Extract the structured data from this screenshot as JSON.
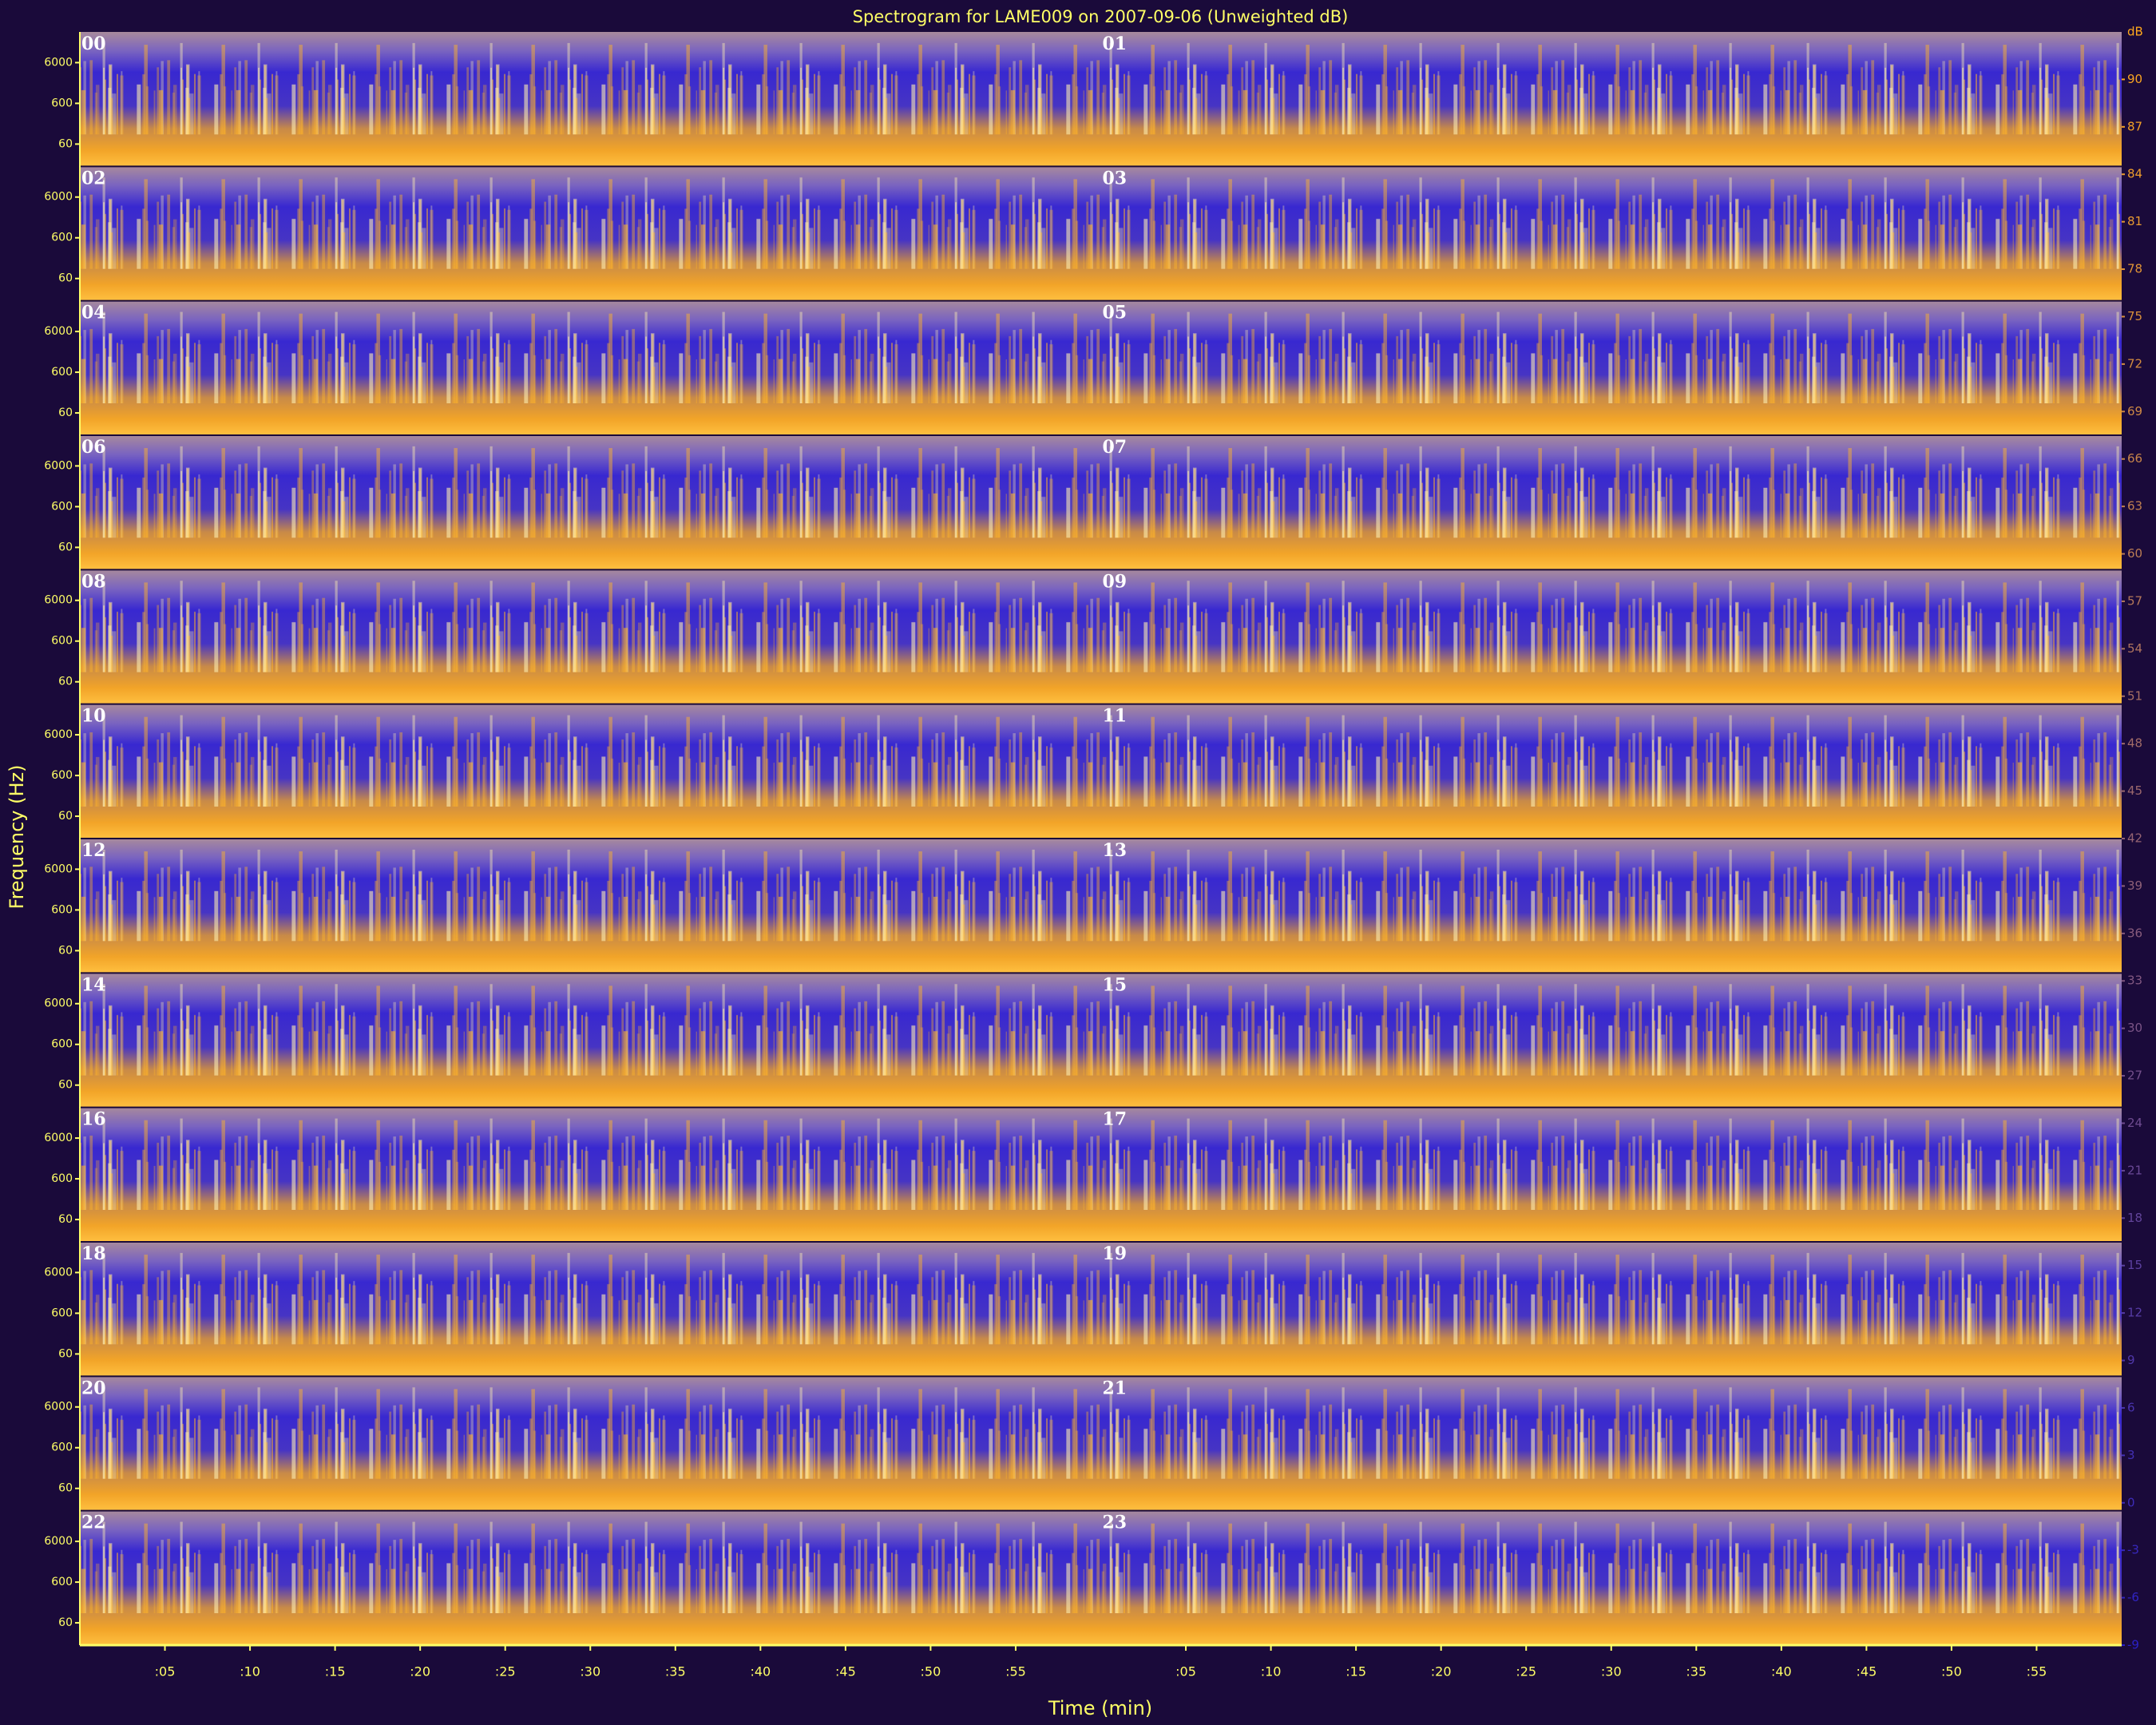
{
  "chart_data": {
    "type": "spectrogram",
    "title": "Spectrogram for LAME009 on 2007-09-06 (Unweighted dB)",
    "x_label": "Time (min)",
    "y_label": "Frequency (Hz)",
    "panels": [
      "00",
      "01",
      "02",
      "03",
      "04",
      "05",
      "06",
      "07",
      "08",
      "09",
      "10",
      "11",
      "12",
      "13",
      "14",
      "15",
      "16",
      "17",
      "18",
      "19",
      "20",
      "21",
      "22",
      "23"
    ],
    "xlim": [
      0,
      60
    ],
    "xticks": [
      {
        "value": 5,
        "label": ":05"
      },
      {
        "value": 10,
        "label": ":10"
      },
      {
        "value": 15,
        "label": ":15"
      },
      {
        "value": 20,
        "label": ":20"
      },
      {
        "value": 25,
        "label": ":25"
      },
      {
        "value": 30,
        "label": ":30"
      },
      {
        "value": 35,
        "label": ":35"
      },
      {
        "value": 40,
        "label": ":40"
      },
      {
        "value": 45,
        "label": ":45"
      },
      {
        "value": 50,
        "label": ":50"
      },
      {
        "value": 55,
        "label": ":55"
      }
    ],
    "ylim": [
      17,
      34000
    ],
    "log_y": true,
    "yticks": [
      60,
      600,
      6000
    ],
    "colormap": [
      "#2a20c8",
      "#ffa81c"
    ],
    "colorbar": {
      "label": "dB",
      "lim": [
        -9,
        93
      ],
      "ticks": [
        90,
        87,
        84,
        81,
        78,
        75,
        72,
        69,
        66,
        63,
        60,
        57,
        54,
        51,
        48,
        45,
        42,
        39,
        36,
        33,
        30,
        27,
        24,
        21,
        18,
        15,
        12,
        9,
        6,
        3,
        0,
        -3,
        -6,
        -9
      ]
    }
  }
}
